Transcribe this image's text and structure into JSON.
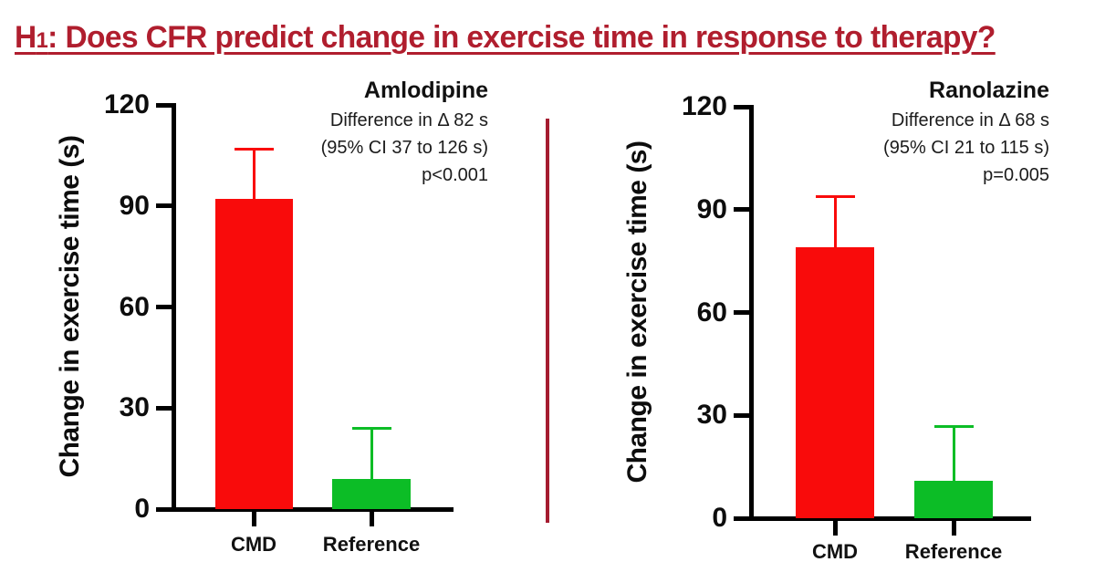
{
  "title": {
    "prefix": "H",
    "subscript": "1",
    "rest": ": Does CFR predict change in exercise time in response to therapy?"
  },
  "colors": {
    "title_red": "#B01E2E",
    "divider_red": "#A51C30",
    "bar_red": "#F90B0B",
    "bar_green": "#0CBD26",
    "axis_black": "#000000"
  },
  "chart_data": [
    {
      "type": "bar",
      "title": "Amlodipine",
      "annotation": [
        "Difference in Δ 82 s",
        "(95% CI 37 to 126 s)",
        "p<0.001"
      ],
      "ylabel": "Change in exercise time (s)",
      "xlabel": "",
      "categories": [
        "CMD",
        "Reference"
      ],
      "values": [
        92,
        9
      ],
      "error_upper": [
        107,
        24
      ],
      "bar_colors": [
        "red",
        "green"
      ],
      "yticks": [
        0,
        30,
        60,
        90,
        120
      ],
      "ylim": [
        0,
        120
      ],
      "grid": false,
      "legend": "none"
    },
    {
      "type": "bar",
      "title": "Ranolazine",
      "annotation": [
        "Difference in Δ 68 s",
        "(95% CI 21 to 115 s)",
        "p=0.005"
      ],
      "ylabel": "Change in exercise time (s)",
      "xlabel": "",
      "categories": [
        "CMD",
        "Reference"
      ],
      "values": [
        79,
        11
      ],
      "error_upper": [
        94,
        27
      ],
      "bar_colors": [
        "red",
        "green"
      ],
      "yticks": [
        0,
        30,
        60,
        90,
        120
      ],
      "ylim": [
        0,
        120
      ],
      "grid": false,
      "legend": "none"
    }
  ]
}
